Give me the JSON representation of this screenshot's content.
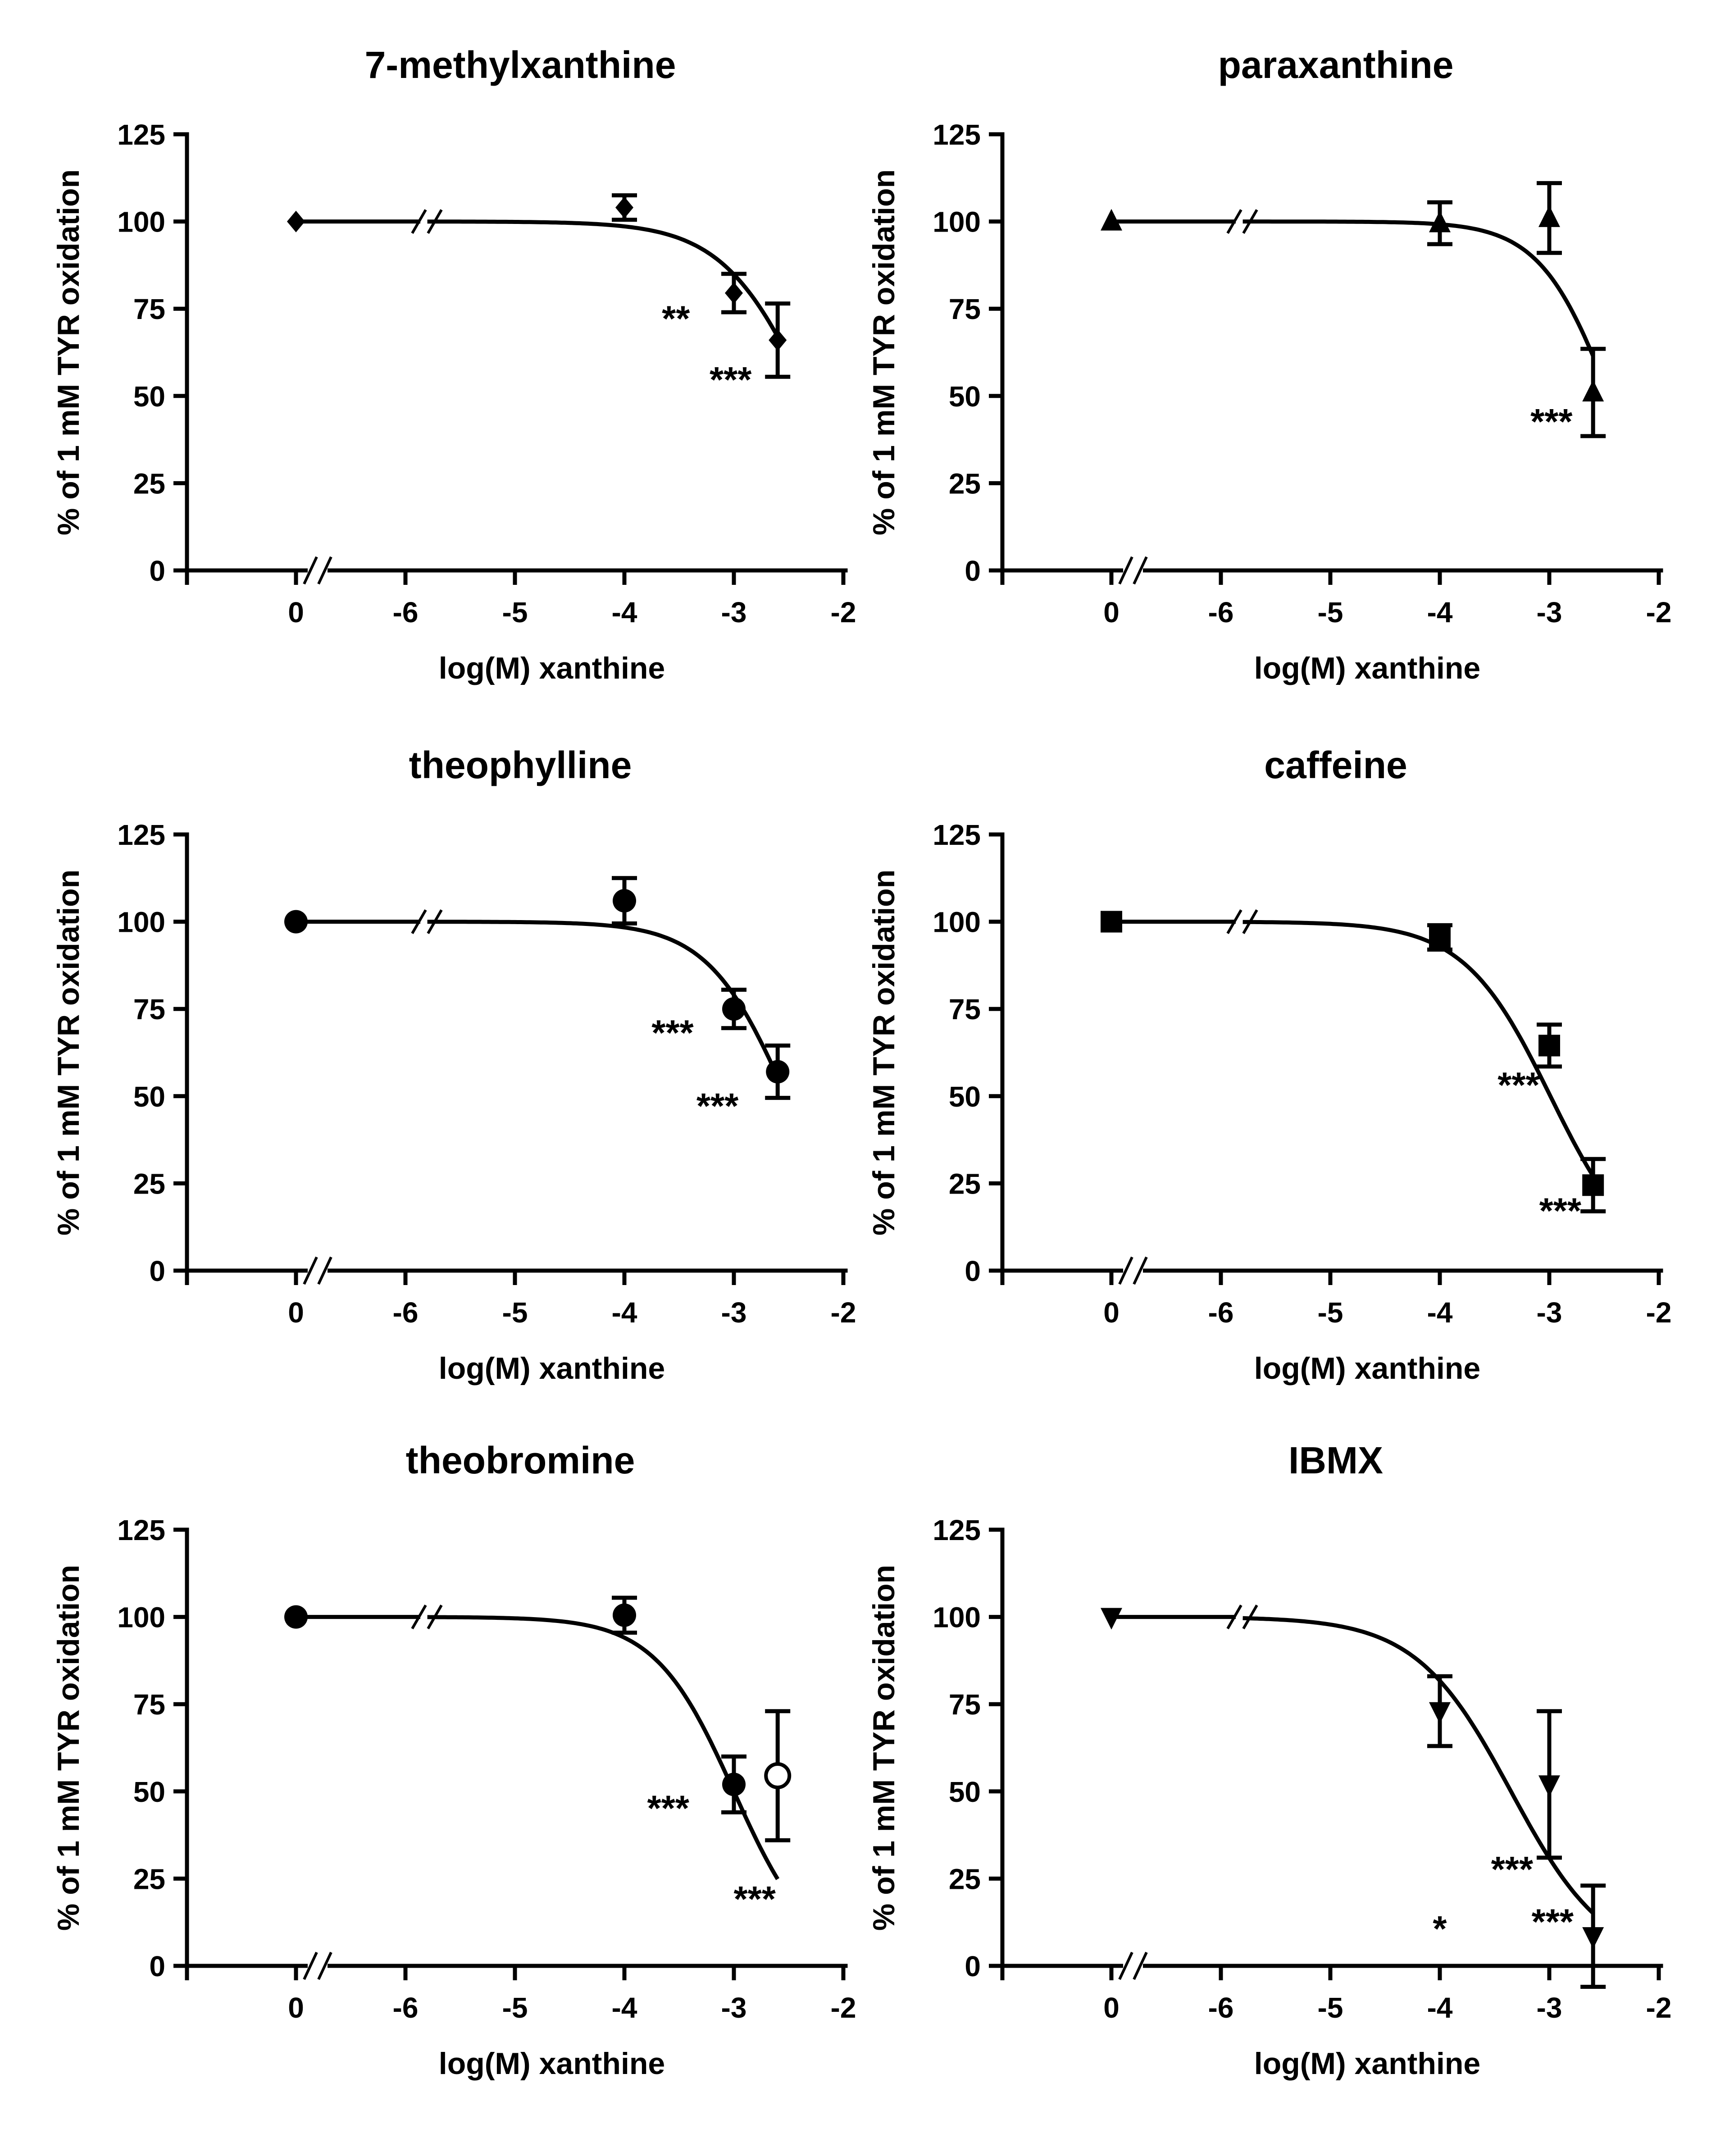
{
  "chart_data": [
    {
      "type": "scatter",
      "title": "7-methylxanthine",
      "xlabel": "log(M) xanthine",
      "ylabel": "% of 1 mM TYR oxidation",
      "x_ticks": [
        "0",
        "-6",
        "-5",
        "-4",
        "-3",
        "-2"
      ],
      "y_ticks": [
        "0",
        "25",
        "50",
        "75",
        "100",
        "125"
      ],
      "xlim": [
        -6,
        -2
      ],
      "ylim": [
        0,
        125
      ],
      "marker": "diamond",
      "fit": {
        "top": 100,
        "bottom": 0,
        "log_ic50": -2.32,
        "hill": -1.1
      },
      "points": [
        {
          "x": "0",
          "y": 100,
          "err": 0
        },
        {
          "x": -4,
          "y": 104,
          "err": 3.5
        },
        {
          "x": -3,
          "y": 79.5,
          "err": 5.5
        },
        {
          "x": -2.6,
          "y": 66,
          "err": 10.5
        }
      ],
      "annotations": [
        {
          "text": "**",
          "x": -3.53,
          "y": 72.5
        },
        {
          "text": "***",
          "x": -3.03,
          "y": 55
        }
      ]
    },
    {
      "type": "scatter",
      "title": "paraxanthine",
      "xlabel": "log(M) xanthine",
      "ylabel": "% of 1 mM TYR oxidation",
      "x_ticks": [
        "0",
        "-6",
        "-5",
        "-4",
        "-3",
        "-2"
      ],
      "y_ticks": [
        "0",
        "25",
        "50",
        "75",
        "100",
        "125"
      ],
      "xlim": [
        -6,
        -2
      ],
      "ylim": [
        0,
        125
      ],
      "marker": "triangle-up",
      "fit": {
        "top": 100,
        "bottom": 0,
        "log_ic50": -2.45,
        "hill": -1.35
      },
      "points": [
        {
          "x": "0",
          "y": 100,
          "err": 0
        },
        {
          "x": -4,
          "y": 99.5,
          "err": 6
        },
        {
          "x": -3,
          "y": 101,
          "err": 10
        },
        {
          "x": -2.6,
          "y": 51,
          "err": 12.5
        }
      ],
      "annotations": [
        {
          "text": "***",
          "x": -2.98,
          "y": 43
        }
      ]
    },
    {
      "type": "scatter",
      "title": "theophylline",
      "xlabel": "log(M) xanthine",
      "ylabel": "% of 1 mM TYR oxidation",
      "x_ticks": [
        "0",
        "-6",
        "-5",
        "-4",
        "-3",
        "-2"
      ],
      "y_ticks": [
        "0",
        "25",
        "50",
        "75",
        "100",
        "125"
      ],
      "xlim": [
        -6,
        -2
      ],
      "ylim": [
        0,
        125
      ],
      "marker": "circle",
      "fit": {
        "top": 100,
        "bottom": 0,
        "log_ic50": -2.52,
        "hill": -1.2
      },
      "points": [
        {
          "x": "0",
          "y": 100,
          "err": 0
        },
        {
          "x": -4,
          "y": 106,
          "err": 6.5
        },
        {
          "x": -3,
          "y": 75,
          "err": 5.5
        },
        {
          "x": -2.6,
          "y": 57,
          "err": 7.5
        }
      ],
      "annotations": [
        {
          "text": "***",
          "x": -3.56,
          "y": 68.5
        },
        {
          "text": "***",
          "x": -3.15,
          "y": 47.5
        }
      ]
    },
    {
      "type": "scatter",
      "title": "caffeine",
      "xlabel": "log(M) xanthine",
      "ylabel": "% of 1 mM TYR oxidation",
      "x_ticks": [
        "0",
        "-6",
        "-5",
        "-4",
        "-3",
        "-2"
      ],
      "y_ticks": [
        "0",
        "25",
        "50",
        "75",
        "100",
        "125"
      ],
      "xlim": [
        -6,
        -2
      ],
      "ylim": [
        0,
        125
      ],
      "marker": "square",
      "fit": {
        "top": 100,
        "bottom": 0,
        "log_ic50": -2.99,
        "hill": -1.1
      },
      "points": [
        {
          "x": "0",
          "y": 100,
          "err": 0
        },
        {
          "x": -4,
          "y": 95.5,
          "err": 3.5
        },
        {
          "x": -3,
          "y": 64.5,
          "err": 6
        },
        {
          "x": -2.6,
          "y": 24.5,
          "err": 7.5
        }
      ],
      "annotations": [
        {
          "text": "***",
          "x": -3.28,
          "y": 53.5
        },
        {
          "text": "***",
          "x": -2.9,
          "y": 17.5
        }
      ]
    },
    {
      "type": "scatter",
      "title": "theobromine",
      "xlabel": "log(M) xanthine",
      "ylabel": "% of 1 mM TYR oxidation",
      "x_ticks": [
        "0",
        "-6",
        "-5",
        "-4",
        "-3",
        "-2"
      ],
      "y_ticks": [
        "0",
        "25",
        "50",
        "75",
        "100",
        "125"
      ],
      "xlim": [
        -6,
        -2
      ],
      "ylim": [
        0,
        125
      ],
      "marker": "circle",
      "fit": {
        "top": 100,
        "bottom": 0,
        "log_ic50": -3.0,
        "hill": -1.2
      },
      "points": [
        {
          "x": "0",
          "y": 100,
          "err": 0
        },
        {
          "x": -4,
          "y": 100.5,
          "err": 5
        },
        {
          "x": -3,
          "y": 52,
          "err": 8
        },
        {
          "x": -2.6,
          "y": 54.5,
          "err": 18.5,
          "open": true
        }
      ],
      "annotations": [
        {
          "text": "***",
          "x": -3.6,
          "y": 45.5
        },
        {
          "text": "***",
          "x": -2.81,
          "y": 19.5
        }
      ]
    },
    {
      "type": "scatter",
      "title": "IBMX",
      "xlabel": "log(M) xanthine",
      "ylabel": "% of 1 mM TYR oxidation",
      "x_ticks": [
        "0",
        "-6",
        "-5",
        "-4",
        "-3",
        "-2"
      ],
      "y_ticks": [
        "0",
        "25",
        "50",
        "75",
        "100",
        "125"
      ],
      "xlim": [
        -6,
        -2
      ],
      "ylim": [
        0,
        125
      ],
      "marker": "triangle-down",
      "fit": {
        "top": 100,
        "bottom": 0,
        "log_ic50": -3.35,
        "hill": -1.0
      },
      "points": [
        {
          "x": "0",
          "y": 100,
          "err": 0
        },
        {
          "x": -4,
          "y": 73,
          "err": 10
        },
        {
          "x": -3,
          "y": 52,
          "err": 21
        },
        {
          "x": -2.6,
          "y": 8.5,
          "err": 14.5
        }
      ],
      "annotations": [
        {
          "text": "*",
          "x": -4.0,
          "y": 11
        },
        {
          "text": "***",
          "x": -3.34,
          "y": 28
        },
        {
          "text": "***",
          "x": -2.97,
          "y": 13
        }
      ]
    }
  ]
}
